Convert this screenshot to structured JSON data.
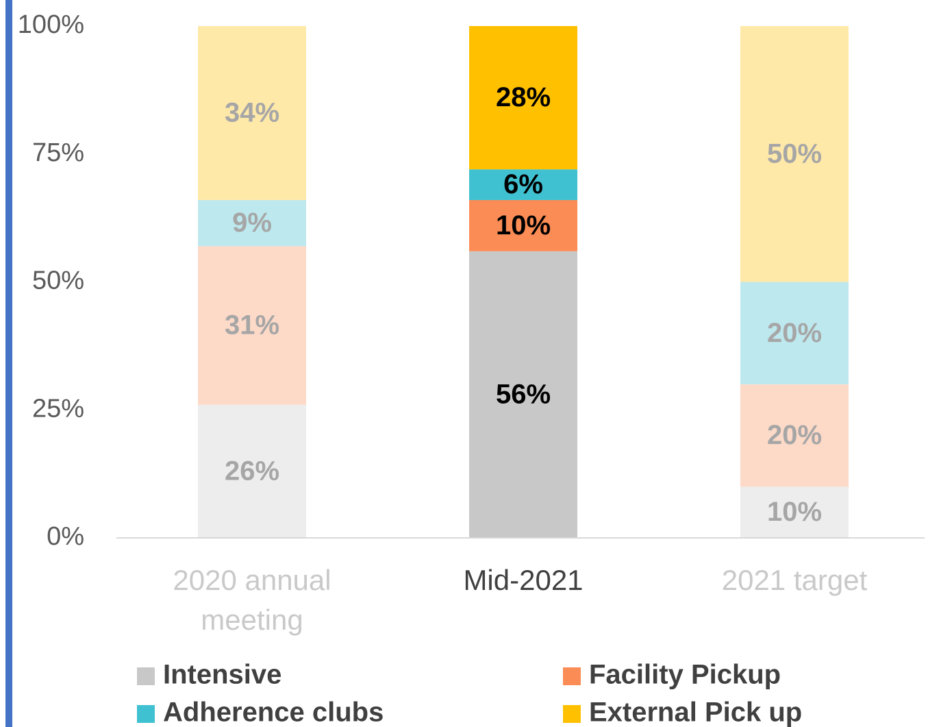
{
  "chart_data": {
    "type": "stacked_bar",
    "categories": [
      "2020 annual meeting",
      "Mid-2021",
      "2021 target"
    ],
    "series": [
      {
        "name": "Intensive",
        "color": "#c8c8c8",
        "colors": [
          "#ededed",
          "#c8c8c8",
          "#ededed"
        ],
        "values": [
          26,
          56,
          10
        ],
        "value_labels": [
          "26%",
          "56%",
          "10%"
        ]
      },
      {
        "name": "Facility Pickup",
        "color": "#fb8c55",
        "colors": [
          "#fdd9c7",
          "#fb8c55",
          "#fdd9c7"
        ],
        "values": [
          31,
          10,
          20
        ],
        "value_labels": [
          "31%",
          "10%",
          "20%"
        ]
      },
      {
        "name": "Adherence clubs",
        "color": "#3fc1d1",
        "colors": [
          "#bde8ee",
          "#3fc1d1",
          "#bde8ee"
        ],
        "values": [
          9,
          6,
          20
        ],
        "value_labels": [
          "9%",
          "6%",
          "20%"
        ]
      },
      {
        "name": "External Pick up",
        "color": "#ffc000",
        "colors": [
          "#ffe9a9",
          "#ffc000",
          "#ffe9a9"
        ],
        "values": [
          34,
          28,
          50
        ],
        "value_labels": [
          "34%",
          "28%",
          "50%"
        ]
      }
    ],
    "label_colors": [
      "#a6a6a6",
      "#000000",
      "#a6a6a6"
    ],
    "category_label_colors": [
      "#c9c9c9",
      "#404040",
      "#c9c9c9"
    ],
    "ylim": [
      0,
      100
    ],
    "yticks": [
      {
        "value": 0,
        "label": "0%"
      },
      {
        "value": 25,
        "label": "25%"
      },
      {
        "value": 50,
        "label": "50%"
      },
      {
        "value": 75,
        "label": "75%"
      },
      {
        "value": 100,
        "label": "100%"
      }
    ],
    "grid": false,
    "legend": "bottom"
  }
}
